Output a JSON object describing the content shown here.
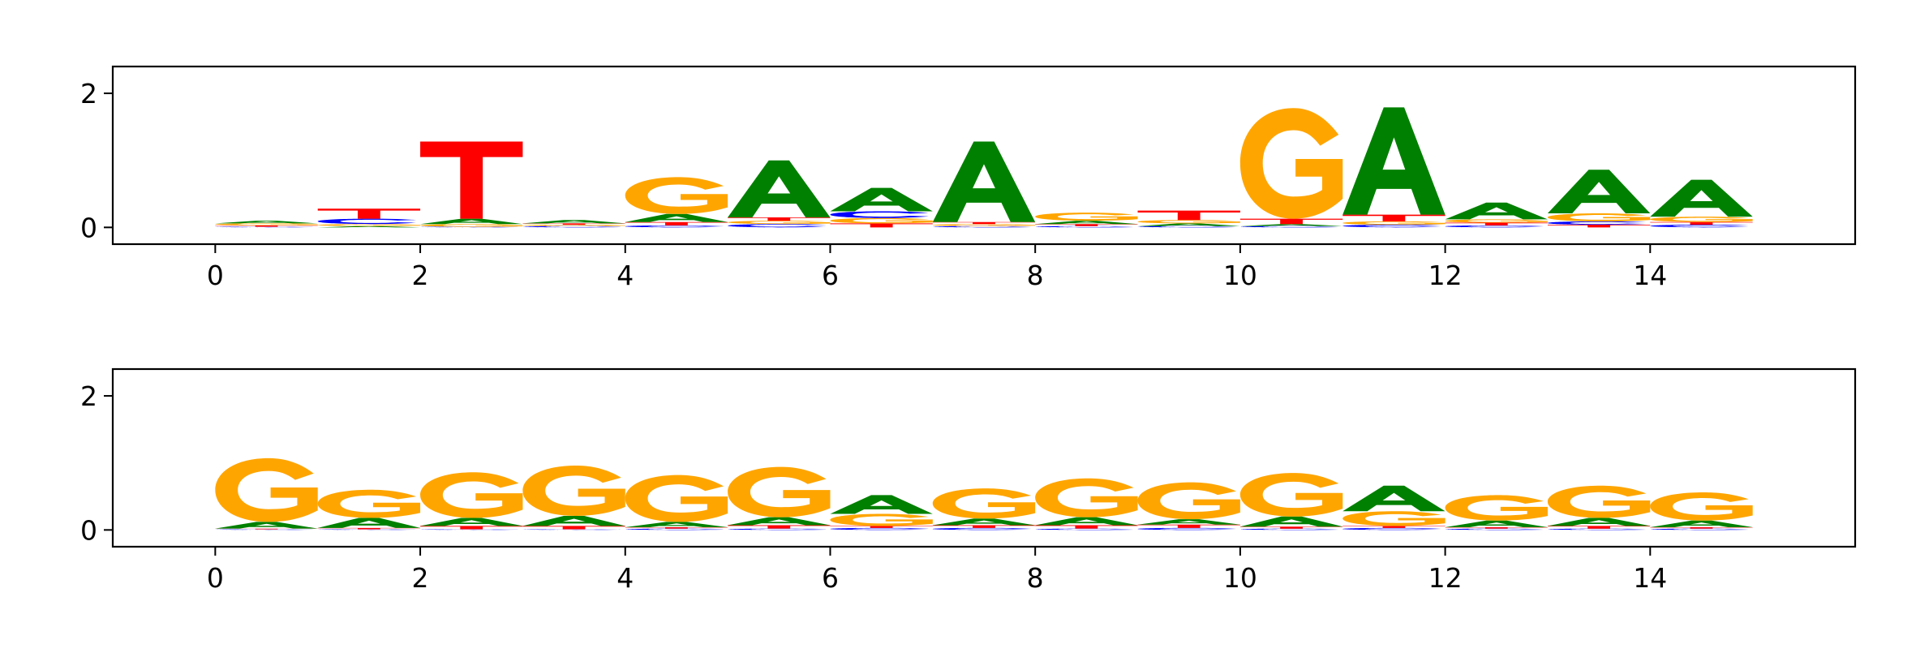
{
  "colors": {
    "A": "#008000",
    "C": "#0000ff",
    "G": "#ffa500",
    "T": "#ff0000"
  },
  "chart_data": [
    {
      "type": "sequence-logo",
      "xlim": [
        -1,
        16
      ],
      "ylim": [
        -0.25,
        2.4
      ],
      "xticks": [
        0,
        2,
        4,
        6,
        8,
        10,
        12,
        14
      ],
      "yticks": [
        0,
        2
      ],
      "positions": [
        {
          "A": 0.04,
          "C": 0.01,
          "G": 0.03,
          "T": 0.02
        },
        {
          "A": 0.02,
          "C": 0.08,
          "G": 0.03,
          "T": 0.15
        },
        {
          "A": 0.08,
          "C": 0.01,
          "G": 0.04,
          "T": 1.15
        },
        {
          "A": 0.05,
          "C": 0.02,
          "G": 0.02,
          "T": 0.02
        },
        {
          "A": 0.12,
          "C": 0.03,
          "G": 0.55,
          "T": 0.05
        },
        {
          "A": 0.85,
          "C": 0.05,
          "G": 0.05,
          "T": 0.05
        },
        {
          "A": 0.35,
          "C": 0.1,
          "G": 0.08,
          "T": 0.06
        },
        {
          "A": 1.2,
          "C": 0.02,
          "G": 0.03,
          "T": 0.03
        },
        {
          "A": 0.05,
          "C": 0.02,
          "G": 0.12,
          "T": 0.03
        },
        {
          "A": 0.04,
          "C": 0.02,
          "G": 0.05,
          "T": 0.14
        },
        {
          "A": 0.03,
          "C": 0.02,
          "G": 1.65,
          "T": 0.08
        },
        {
          "A": 1.6,
          "C": 0.04,
          "G": 0.05,
          "T": 0.1
        },
        {
          "A": 0.25,
          "C": 0.03,
          "G": 0.05,
          "T": 0.04
        },
        {
          "A": 0.65,
          "C": 0.05,
          "G": 0.12,
          "T": 0.04
        },
        {
          "A": 0.55,
          "C": 0.04,
          "G": 0.08,
          "T": 0.04
        }
      ]
    },
    {
      "type": "sequence-logo",
      "xlim": [
        -1,
        16
      ],
      "ylim": [
        -0.25,
        2.4
      ],
      "xticks": [
        0,
        2,
        4,
        6,
        8,
        10,
        12,
        14
      ],
      "yticks": [
        0,
        2
      ],
      "positions": [
        {
          "A": 0.1,
          "C": 0.01,
          "G": 0.95,
          "T": 0.01
        },
        {
          "A": 0.15,
          "C": 0.01,
          "G": 0.42,
          "T": 0.02
        },
        {
          "A": 0.12,
          "C": 0.01,
          "G": 0.68,
          "T": 0.05
        },
        {
          "A": 0.15,
          "C": 0.01,
          "G": 0.75,
          "T": 0.05
        },
        {
          "A": 0.08,
          "C": 0.02,
          "G": 0.7,
          "T": 0.02
        },
        {
          "A": 0.12,
          "C": 0.02,
          "G": 0.75,
          "T": 0.05
        },
        {
          "A": 0.28,
          "C": 0.03,
          "G": 0.18,
          "T": 0.03
        },
        {
          "A": 0.1,
          "C": 0.03,
          "G": 0.45,
          "T": 0.04
        },
        {
          "A": 0.12,
          "C": 0.02,
          "G": 0.58,
          "T": 0.05
        },
        {
          "A": 0.08,
          "C": 0.03,
          "G": 0.55,
          "T": 0.05
        },
        {
          "A": 0.15,
          "C": 0.02,
          "G": 0.65,
          "T": 0.03
        },
        {
          "A": 0.38,
          "C": 0.03,
          "G": 0.22,
          "T": 0.03
        },
        {
          "A": 0.1,
          "C": 0.02,
          "G": 0.38,
          "T": 0.02
        },
        {
          "A": 0.12,
          "C": 0.02,
          "G": 0.48,
          "T": 0.04
        },
        {
          "A": 0.1,
          "C": 0.02,
          "G": 0.42,
          "T": 0.02
        }
      ]
    }
  ]
}
